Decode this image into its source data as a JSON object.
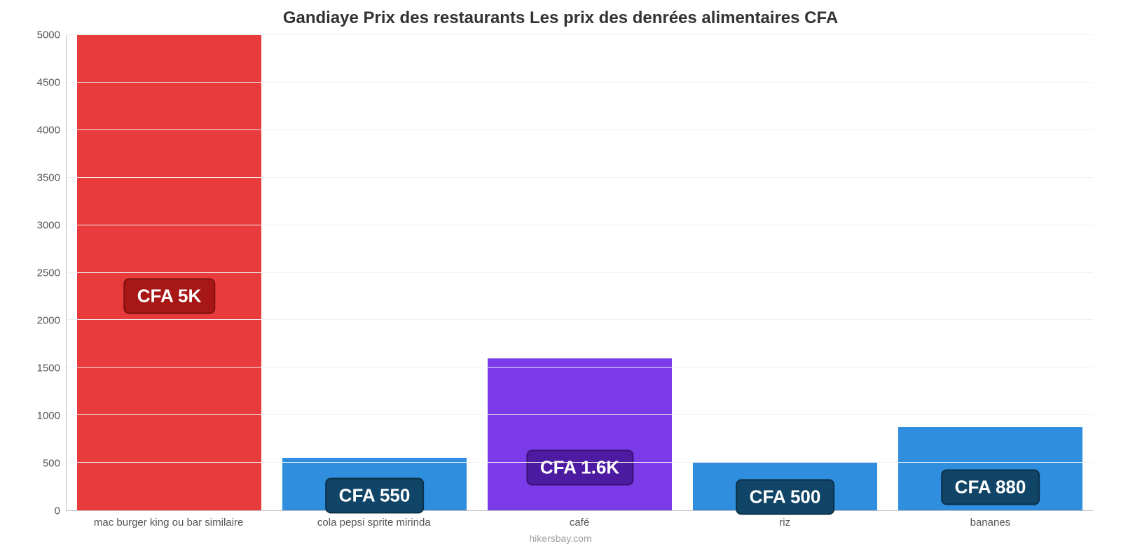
{
  "chart": {
    "type": "bar",
    "title": "Gandiaye Prix des restaurants Les prix des denrées alimentaires CFA",
    "title_fontsize": 24,
    "title_color": "#333333",
    "footer": "hikersbay.com",
    "footer_color": "#9e9e9e",
    "background_color": "#ffffff",
    "grid_color": "#f2f0f0",
    "axis_line_color": "#bfbfbf",
    "tick_label_color": "#555555",
    "tick_label_fontsize": 15,
    "ylim": [
      0,
      5000
    ],
    "yticks": [
      0,
      500,
      1000,
      1500,
      2000,
      2500,
      3000,
      3500,
      4000,
      4500,
      5000
    ],
    "bar_width_ratio": 0.9,
    "value_label_fontsize": 26,
    "categories": [
      "mac burger king ou bar similaire",
      "cola pepsi sprite mirinda",
      "café",
      "riz",
      "bananes"
    ],
    "bars": [
      {
        "value": 5000,
        "label": "CFA 5K",
        "color": "#e83b3b",
        "badge_bg": "#a71716",
        "badge_border": "#7e1111"
      },
      {
        "value": 550,
        "label": "CFA 550",
        "color": "#2f8fde",
        "badge_bg": "#104568",
        "badge_border": "#0b3049"
      },
      {
        "value": 1600,
        "label": "CFA 1.6K",
        "color": "#7c3be8",
        "badge_bg": "#4d1aa2",
        "badge_border": "#381276"
      },
      {
        "value": 500,
        "label": "CFA 500",
        "color": "#2f8fde",
        "badge_bg": "#104568",
        "badge_border": "#0b3049"
      },
      {
        "value": 880,
        "label": "CFA 880",
        "color": "#2f8fde",
        "badge_bg": "#104568",
        "badge_border": "#0b3049"
      }
    ]
  }
}
